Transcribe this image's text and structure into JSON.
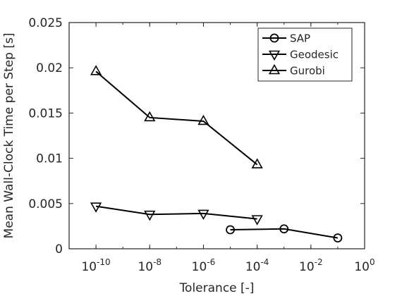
{
  "chart_data": {
    "type": "line",
    "title": "",
    "xlabel": "Tolerance [-]",
    "ylabel": "Mean Wall-Clock Time per Step [s]",
    "xscale": "log",
    "xlim": [
      1e-11,
      1
    ],
    "ylim": [
      0,
      0.025
    ],
    "grid": false,
    "legend_position": "top-right",
    "x_ticks": [
      {
        "value": 1e-10,
        "base": "10",
        "exp": "-10"
      },
      {
        "value": 1e-08,
        "base": "10",
        "exp": "-8"
      },
      {
        "value": 1e-06,
        "base": "10",
        "exp": "-6"
      },
      {
        "value": 0.0001,
        "base": "10",
        "exp": "-4"
      },
      {
        "value": 0.01,
        "base": "10",
        "exp": "-2"
      },
      {
        "value": 1,
        "base": "10",
        "exp": "0"
      }
    ],
    "y_ticks": [
      {
        "value": 0,
        "label": "0"
      },
      {
        "value": 0.005,
        "label": "0.005"
      },
      {
        "value": 0.01,
        "label": "0.01"
      },
      {
        "value": 0.015,
        "label": "0.015"
      },
      {
        "value": 0.02,
        "label": "0.02"
      },
      {
        "value": 0.025,
        "label": "0.025"
      }
    ],
    "series": [
      {
        "name": "SAP",
        "marker": "circle",
        "color": "#000000",
        "x": [
          1e-05,
          0.001,
          0.1
        ],
        "y": [
          0.0021,
          0.0022,
          0.0012
        ]
      },
      {
        "name": "Geodesic",
        "marker": "triangle-down",
        "color": "#000000",
        "x": [
          1e-10,
          1e-08,
          1e-06,
          0.0001
        ],
        "y": [
          0.0047,
          0.0038,
          0.0039,
          0.0033
        ]
      },
      {
        "name": "Gurobi",
        "marker": "triangle-up",
        "color": "#000000",
        "x": [
          1e-10,
          1e-08,
          1e-06,
          0.0001
        ],
        "y": [
          0.0196,
          0.0145,
          0.0141,
          0.0093
        ]
      }
    ]
  }
}
